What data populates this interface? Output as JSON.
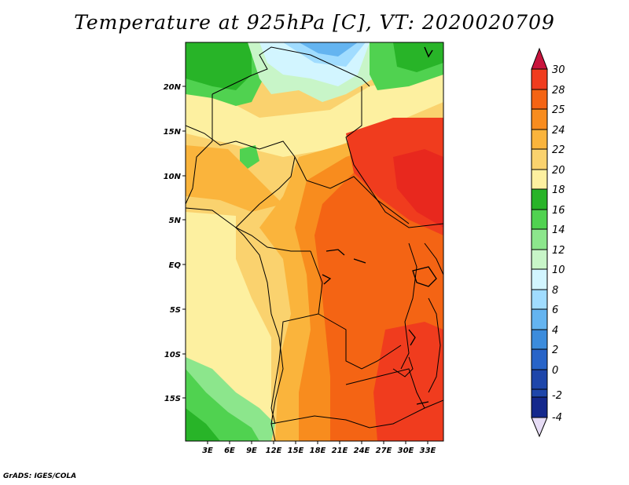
{
  "title": "Temperature at 925hPa [C], VT: 2020020709",
  "footer": "GrADS: IGES/COLA",
  "map": {
    "lat_labels": [
      "20N",
      "15N",
      "10N",
      "5N",
      "EQ",
      "5S",
      "10S",
      "15S"
    ],
    "lon_labels": [
      "3E",
      "6E",
      "9E",
      "12E",
      "15E",
      "18E",
      "21E",
      "24E",
      "27E",
      "30E",
      "33E"
    ]
  },
  "colorbar": {
    "labels": [
      "30",
      "28",
      "25",
      "24",
      "22",
      "20",
      "18",
      "16",
      "14",
      "12",
      "10",
      "8",
      "6",
      "4",
      "2",
      "0",
      "-2",
      "-4"
    ],
    "colors": {
      "above_30": "#c8143c",
      "28_30": "#f03c1e",
      "25_28": "#f46414",
      "24_25": "#f88c1e",
      "22_24": "#fab43c",
      "20_22": "#fad26e",
      "18_20": "#fdf0a0",
      "16_18": "#28b428",
      "14_16": "#50d250",
      "12_14": "#8ce68c",
      "10_12": "#c8f5c8",
      "8_10": "#d2f5ff",
      "6_8": "#a0dcff",
      "4_6": "#64b4f0",
      "2_4": "#3c8cdc",
      "0_2": "#2864c8",
      "-2_0": "#1e46aa",
      "-4_-2": "#14288c",
      "below_-4": "#e6dcf5"
    }
  }
}
